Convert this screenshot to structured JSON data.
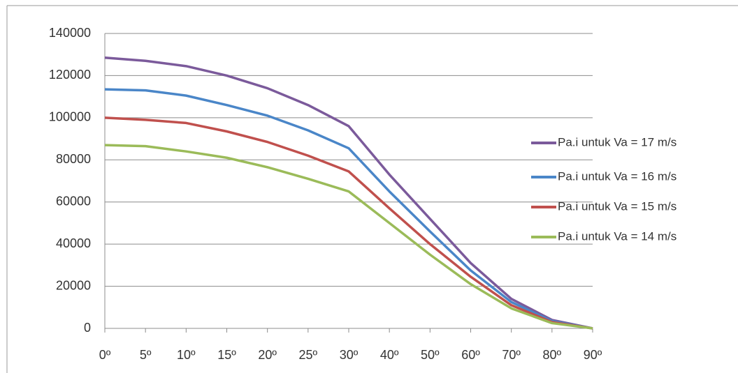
{
  "chart_data": {
    "type": "line",
    "categories": [
      "0º",
      "5º",
      "10º",
      "15º",
      "20º",
      "25º",
      "30º",
      "40º",
      "50º",
      "60º",
      "70º",
      "80º",
      "90º"
    ],
    "series": [
      {
        "name": "Pa.i untuk Va = 17 m/s",
        "color": "#7b5a9b",
        "values": [
          128500,
          127000,
          124500,
          120000,
          114000,
          106000,
          96000,
          73000,
          52000,
          31000,
          14000,
          4000,
          0
        ]
      },
      {
        "name": "Pa.i untuk Va = 16 m/s",
        "color": "#4a86c8",
        "values": [
          113500,
          113000,
          110500,
          106000,
          101000,
          94000,
          85500,
          65000,
          46000,
          27500,
          12500,
          3500,
          0
        ]
      },
      {
        "name": "Pa.i untuk Va = 15 m/s",
        "color": "#c0504d",
        "values": [
          100000,
          99000,
          97500,
          93500,
          88500,
          82000,
          74500,
          57000,
          40000,
          24500,
          11000,
          3000,
          0
        ]
      },
      {
        "name": "Pa.i untuk Va = 14 m/s",
        "color": "#9bbb59",
        "values": [
          87000,
          86500,
          84000,
          81000,
          76500,
          71000,
          65000,
          50000,
          35000,
          21000,
          9500,
          2500,
          0
        ]
      }
    ],
    "ylim": [
      0,
      140000
    ],
    "yticks": [
      0,
      20000,
      40000,
      60000,
      80000,
      100000,
      120000,
      140000
    ],
    "grid": true,
    "legend": "right"
  }
}
